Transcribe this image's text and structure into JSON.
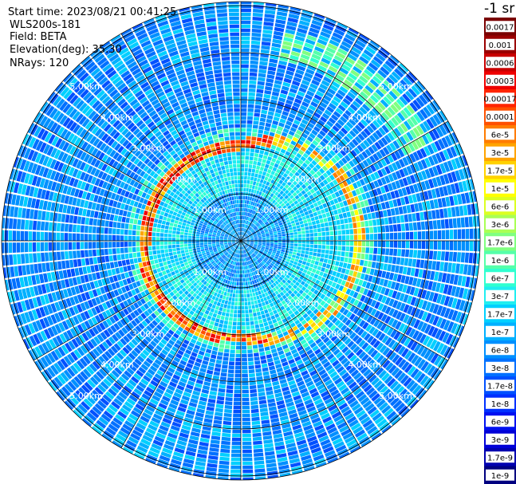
{
  "info": {
    "start_time": "Start time: 2023/08/21 00:41:25",
    "instrument": "WLS200s-181",
    "field": "Field: BETA",
    "elevation": "Elevation(deg): 35.30",
    "nrays": "NRays: 120"
  },
  "colorbar": {
    "title": "-1 sr",
    "labels": [
      "0.0017",
      "0.001",
      "0.0006",
      "0.0003",
      "0.00017",
      "0.0001",
      "6e-5",
      "3e-5",
      "1.7e-5",
      "1e-5",
      "6e-6",
      "3e-6",
      "1.7e-6",
      "1e-6",
      "6e-7",
      "3e-7",
      "1.7e-7",
      "1e-7",
      "6e-8",
      "3e-8",
      "1.7e-8",
      "1e-8",
      "6e-9",
      "3e-9",
      "1.7e-9",
      "1e-9"
    ],
    "colors": [
      "#7a0000",
      "#9a0000",
      "#c80000",
      "#ee0000",
      "#ff2400",
      "#ff5000",
      "#ff7c00",
      "#ffa400",
      "#ffd200",
      "#ffff00",
      "#dcff22",
      "#aaff55",
      "#80ff80",
      "#55ffaa",
      "#30ffd0",
      "#20eef0",
      "#00d0ff",
      "#00b0ff",
      "#0090ff",
      "#0070ff",
      "#0050ff",
      "#0030ff",
      "#0010f0",
      "#0000d8",
      "#0000b0",
      "#000080"
    ]
  },
  "range_rings": [
    "1.00km",
    "2.00km",
    "3.00km",
    "4.00km",
    "5.00km"
  ]
}
